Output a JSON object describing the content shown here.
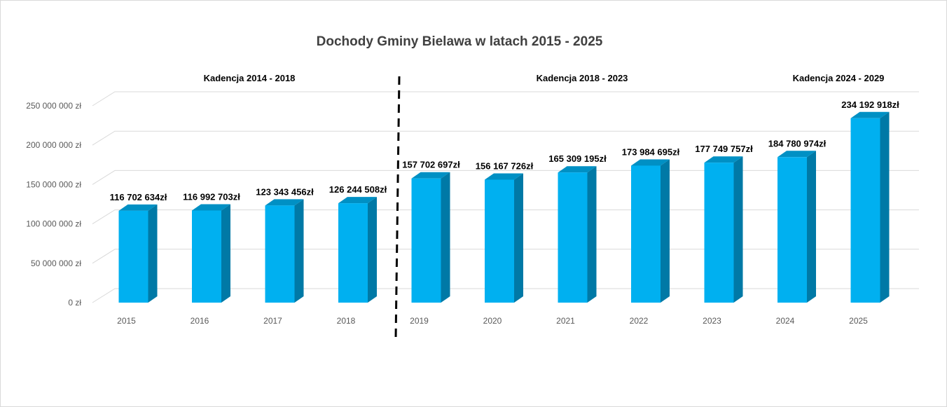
{
  "chart_data": {
    "type": "bar",
    "title": "Dochody Gminy Bielawa w latach 2015 - 2025",
    "categories": [
      "2015",
      "2016",
      "2017",
      "2018",
      "2019",
      "2020",
      "2021",
      "2022",
      "2023",
      "2024",
      "2025"
    ],
    "values": [
      116702634,
      116992703,
      123343456,
      126244508,
      157702697,
      156167726,
      165309195,
      173984695,
      177749757,
      184780974,
      234192918
    ],
    "data_labels": [
      "116 702 634zł",
      "116 992 703zł",
      "123 343 456zł",
      "126 244 508zł",
      "157 702 697zł",
      "156 167 726zł",
      "165 309 195zł",
      "173 984 695zł",
      "177 749 757zł",
      "184 780 974zł",
      "234 192 918zł"
    ],
    "ylim": [
      0,
      250000000
    ],
    "yticks": [
      0,
      50000000,
      100000000,
      150000000,
      200000000,
      250000000
    ],
    "ytick_labels": [
      "0 zł",
      "50 000 000 zł",
      "100 000 000 zł",
      "150 000 000 zł",
      "200 000 000 zł",
      "250 000 000 zł"
    ],
    "xlabel": "",
    "ylabel": "",
    "grid": true,
    "legend": "none",
    "bar_color": "#00b0f0",
    "bar_side_color": "#0079a6",
    "bar_top_color": "#0090c4",
    "annotations": [
      {
        "label": "Kadencja 2014 - 2018"
      },
      {
        "label": "Kadencja 2018 - 2023"
      },
      {
        "label": "Kadencja 2024 - 2029"
      }
    ],
    "divider": {
      "after_category": "2018",
      "style": "dashed"
    }
  }
}
